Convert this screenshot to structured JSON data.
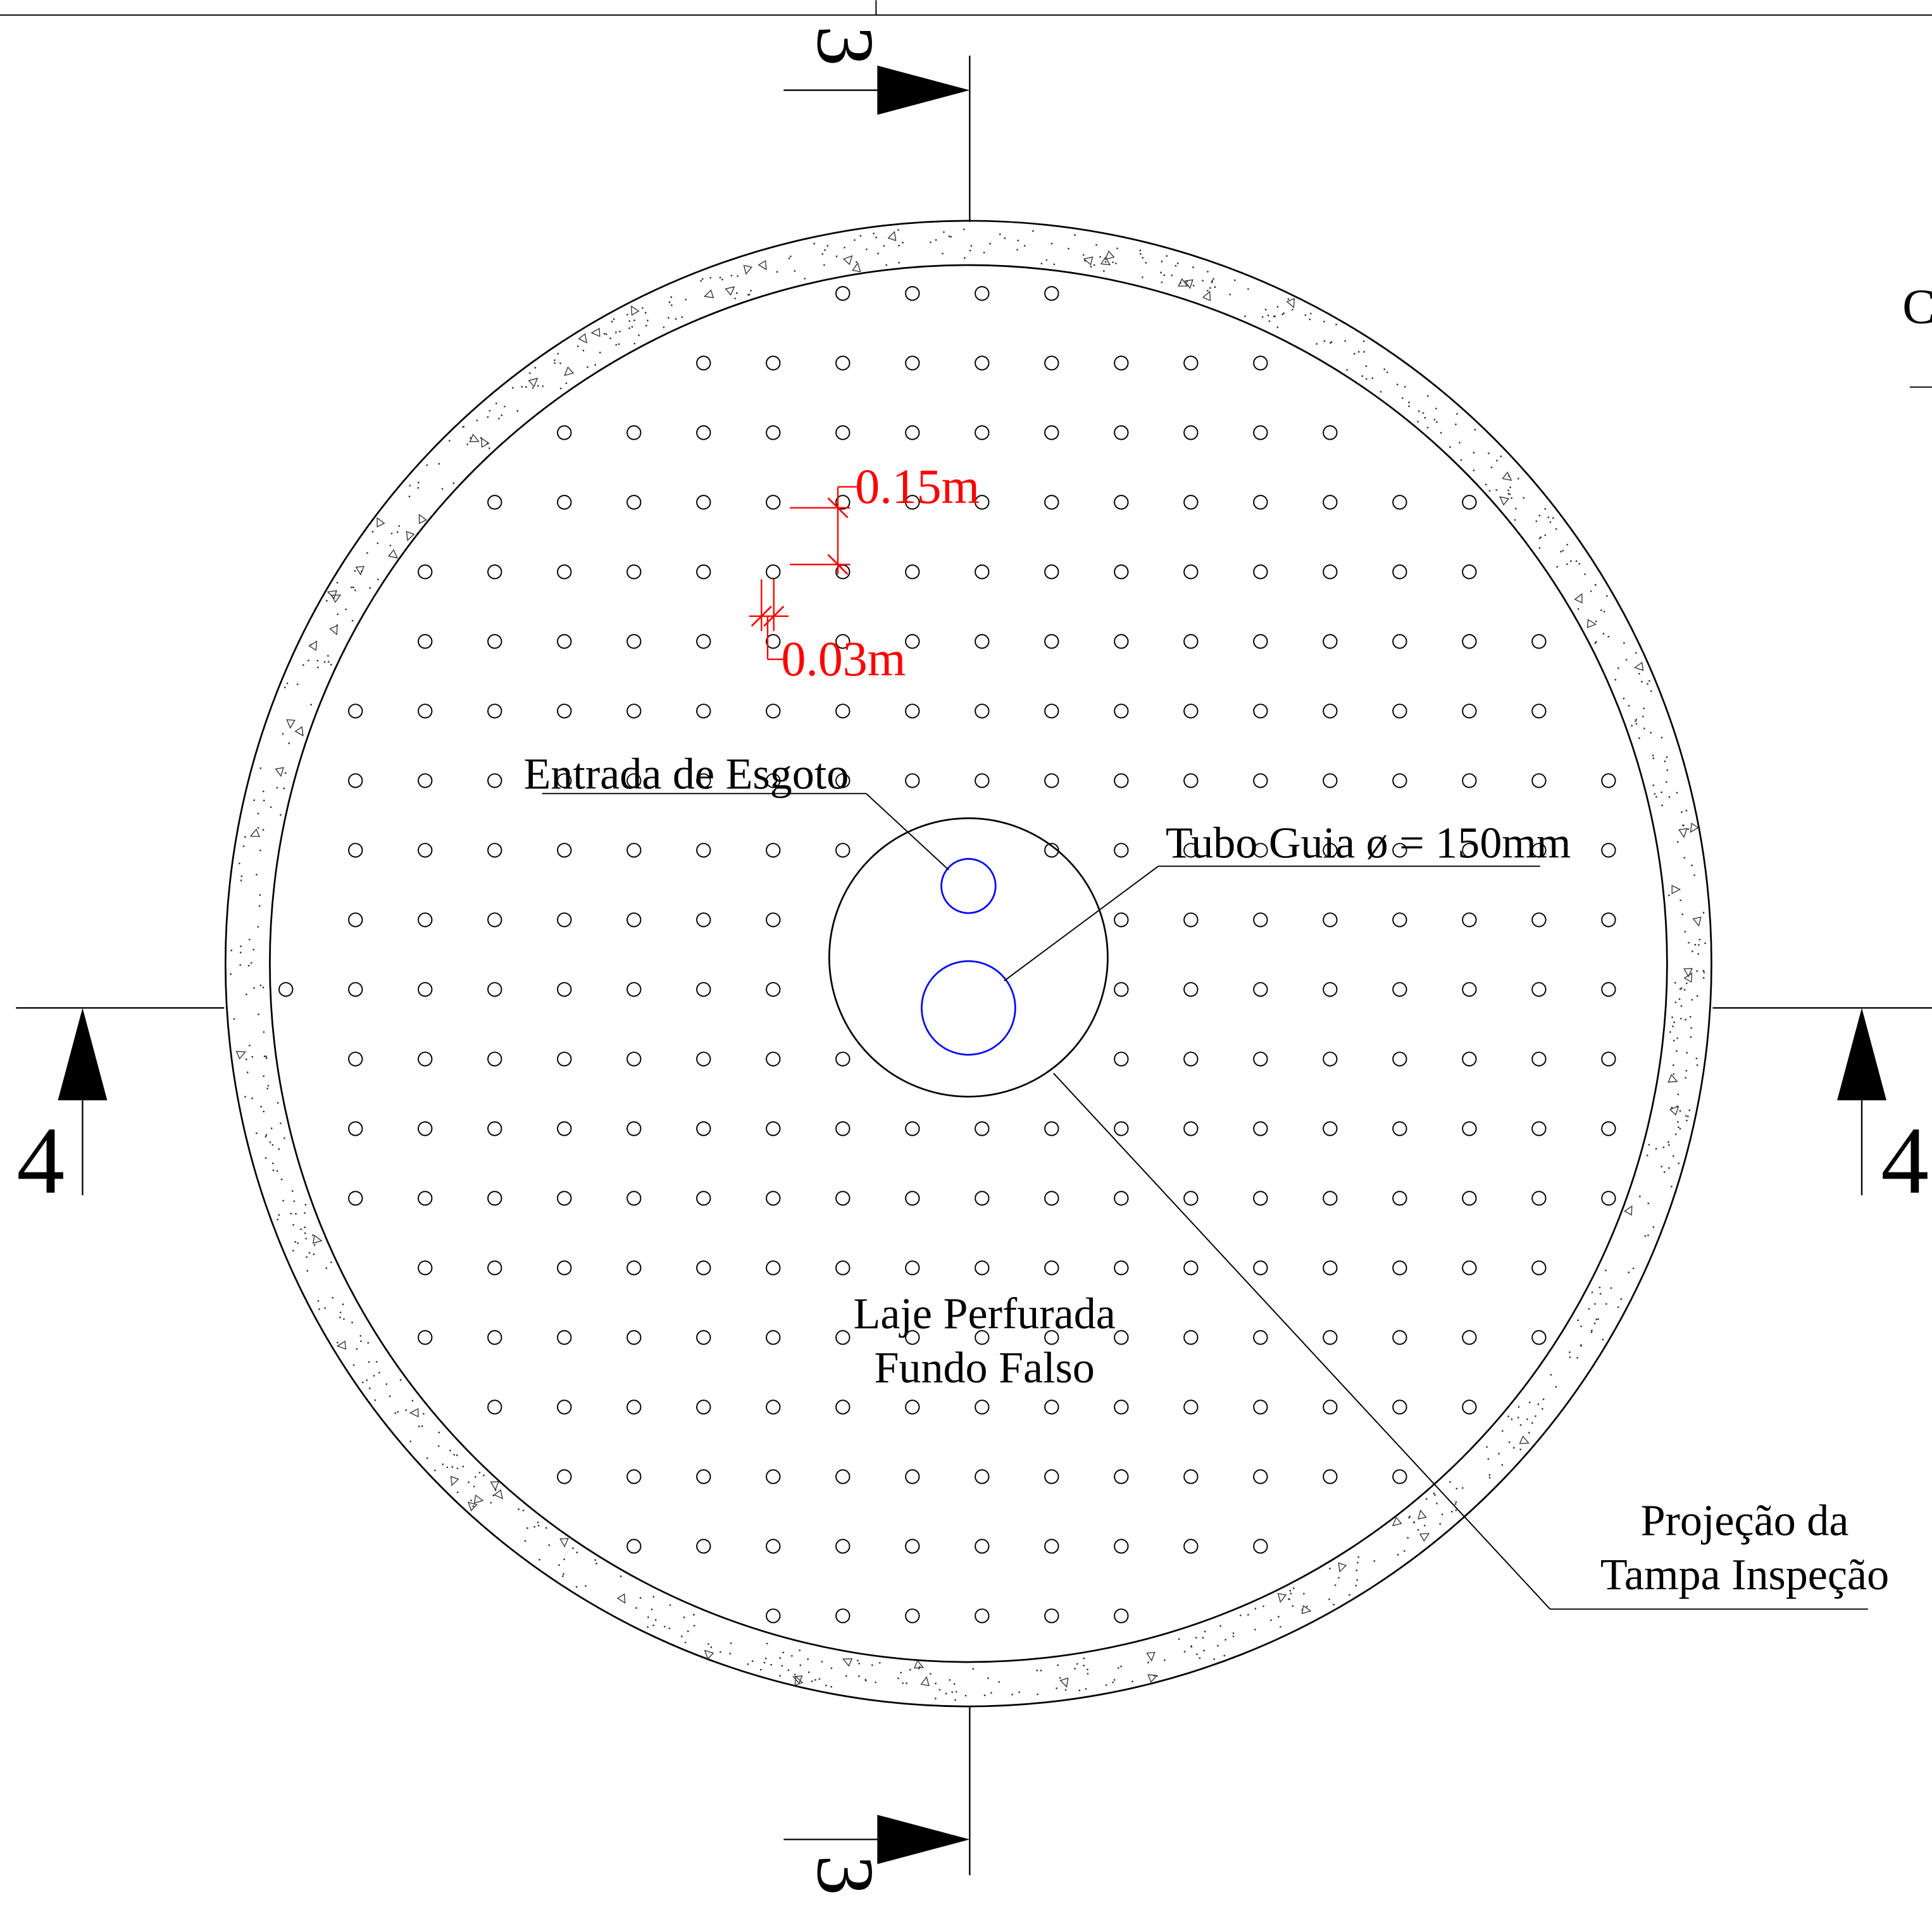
{
  "colors": {
    "line": "#000000",
    "dimension": "#ff0000",
    "pipe": "#0000ff",
    "speck": "#333333"
  },
  "section_marks": {
    "vertical_top": "3",
    "vertical_bottom": "3",
    "horizontal_left": "4",
    "horizontal_right": "4"
  },
  "dimensions": {
    "hole_spacing": "0.15m",
    "hole_diameter": "0.03m"
  },
  "labels": {
    "sewage_inlet": "Entrada de Esgoto",
    "guide_tube": "Tubo Guia ø = 150mm",
    "slab_line1": "Laje Perfurada",
    "slab_line2": "Fundo Falso",
    "lid_line1": "Projeção da",
    "lid_line2": "Tampa Inspeção",
    "edge_fragment": "C"
  }
}
